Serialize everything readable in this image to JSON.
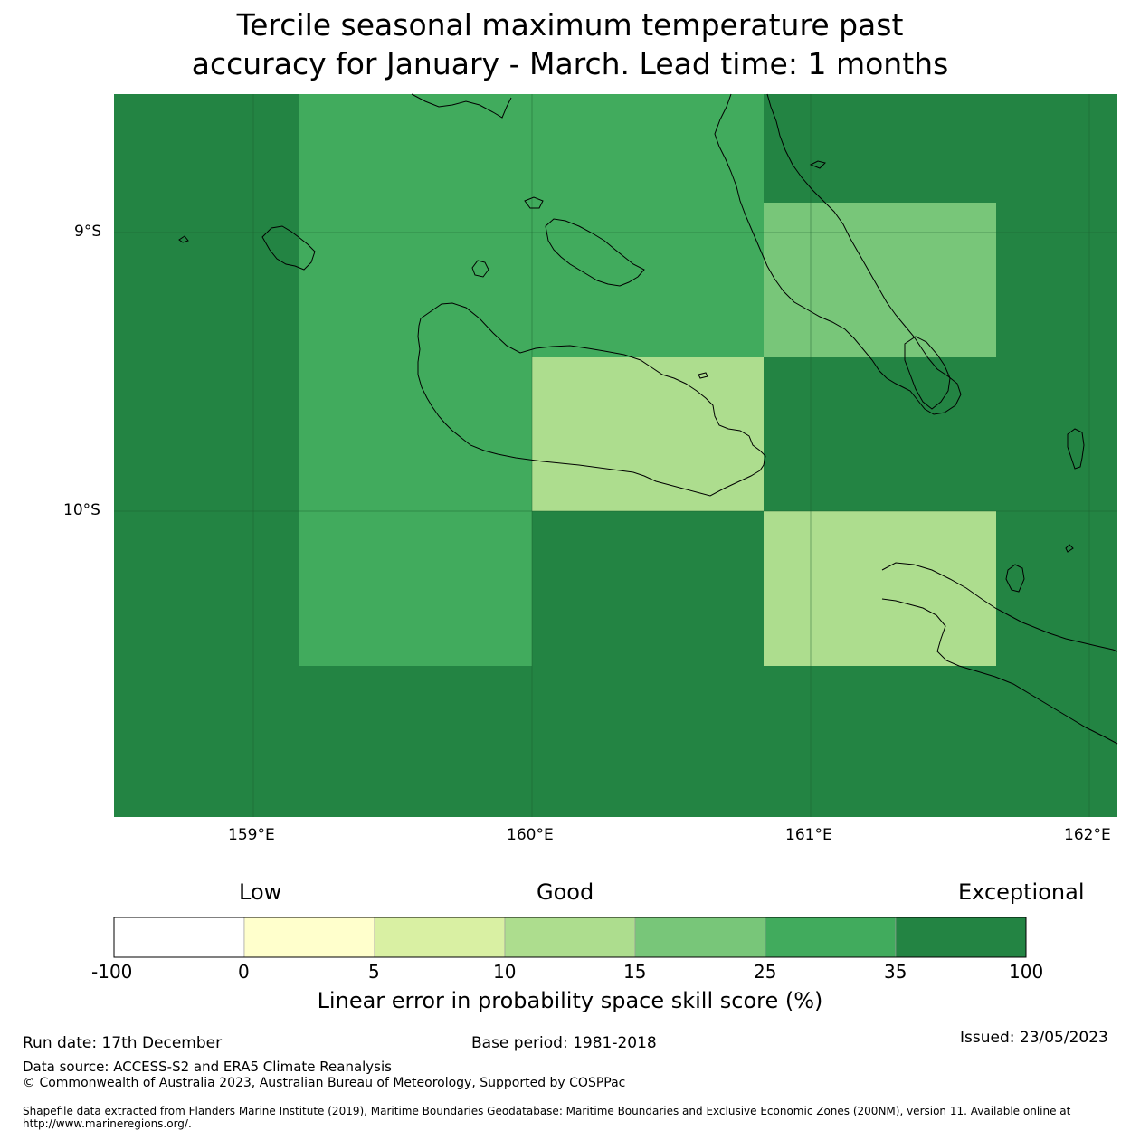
{
  "title": {
    "line1": "Tercile seasonal maximum temperature past",
    "line2": "accuracy for January - March. Lead time: 1 months"
  },
  "map": {
    "lat_ticks": [
      "9°S",
      "10°S"
    ],
    "lon_ticks": [
      "159°E",
      "160°E",
      "161°E",
      "162°E"
    ],
    "grid_skill_classes": [
      [
        "35-100",
        "25-35",
        "25-35",
        "35-100",
        "35-100"
      ],
      [
        "35-100",
        "25-35",
        "25-35",
        "15-25",
        "35-100"
      ],
      [
        "35-100",
        "25-35",
        "10-15",
        "35-100",
        "35-100"
      ],
      [
        "35-100",
        "25-35",
        "35-100",
        "10-15",
        "35-100"
      ],
      [
        "35-100",
        "35-100",
        "35-100",
        "35-100",
        "35-100"
      ]
    ]
  },
  "colorbar": {
    "categories": [
      "Low",
      "Good",
      "Exceptional"
    ],
    "bins": [
      {
        "range": "-100 to 0",
        "color": "#ffffff"
      },
      {
        "range": "0 to 5",
        "color": "#ffffcc"
      },
      {
        "range": "5 to 10",
        "color": "#d9f0a3"
      },
      {
        "range": "10 to 15",
        "color": "#addd8e"
      },
      {
        "range": "15 to 25",
        "color": "#78c679"
      },
      {
        "range": "25 to 35",
        "color": "#41ab5d"
      },
      {
        "range": "35 to 100",
        "color": "#238443"
      }
    ],
    "tick_labels": [
      "-100",
      "0",
      "5",
      "10",
      "15",
      "25",
      "35",
      "100"
    ],
    "label": "Linear error in probability space skill score (%)"
  },
  "footer": {
    "run_date": "Run date: 17th December",
    "base_period": "Base period: 1981-2018",
    "issued": "Issued: 23/05/2023",
    "data_source": "Data source: ACCESS-S2 and ERA5 Climate Reanalysis",
    "copyright": "© Commonwealth of Australia 2023, Australian Bureau of Meteorology, Supported by COSPPac",
    "shapefile": "Shapefile data extracted from Flanders Marine Institute (2019), Maritime Boundaries Geodatabase: Maritime Boundaries and Exclusive Economic Zones (200NM), version 11. Available online at http://www.marineregions.org/."
  }
}
